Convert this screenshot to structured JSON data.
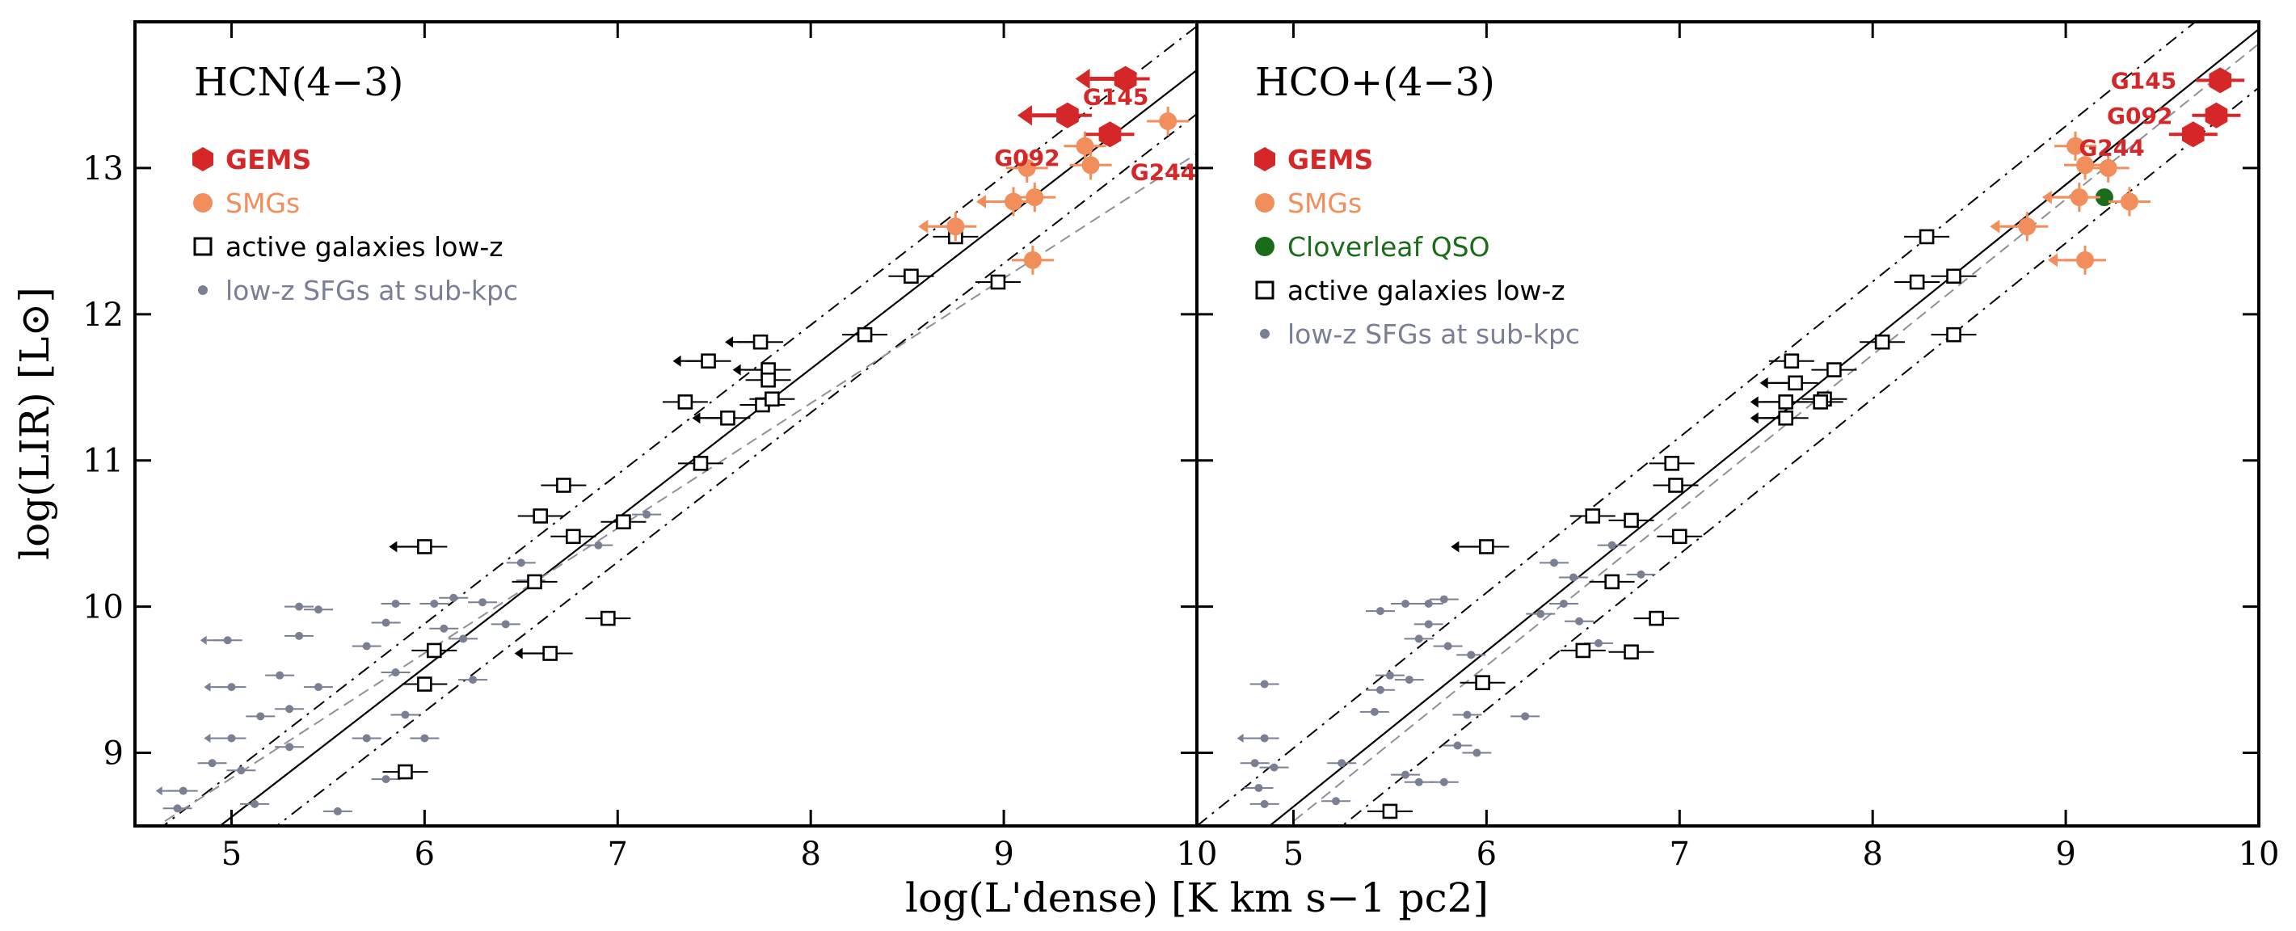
{
  "chart_data": {
    "type": "scatter",
    "xlabel": "log(L'dense) [K km s−1 pc2]",
    "ylabel": "log(LIR) [L⊙]",
    "xlim": [
      4.5,
      10.0
    ],
    "ylim": [
      8.5,
      14.0
    ],
    "xticks": [
      5,
      6,
      7,
      8,
      9,
      10
    ],
    "yticks": [
      9,
      10,
      11,
      12,
      13
    ],
    "colors": {
      "gems": "#d62728",
      "smgs": "#f28e5b",
      "cloverleaf": "#1a6b1a",
      "active": "#000000",
      "sfg": "#7a7f93",
      "trend": "#000000",
      "fit_hcn": "#8f8f9c"
    },
    "panels": [
      {
        "id": "hcn",
        "title": "HCN(4−3)",
        "legend": [
          {
            "key": "gems",
            "label": "GEMS"
          },
          {
            "key": "smgs",
            "label": "SMGs"
          },
          {
            "key": "active",
            "label": "active galaxies low-z"
          },
          {
            "key": "sfg",
            "label": "low-z SFGs at sub-kpc"
          }
        ],
        "gems": [
          {
            "name": "G145",
            "x": 9.63,
            "y": 13.61,
            "upper": true
          },
          {
            "name": "G092",
            "x": 9.33,
            "y": 13.36,
            "upper": true
          },
          {
            "name": "G244",
            "x": 9.55,
            "y": 13.23,
            "upper": false
          }
        ],
        "smgs": [
          {
            "x": 9.12,
            "y": 13.0,
            "upper": false
          },
          {
            "x": 9.16,
            "y": 12.8,
            "upper": false
          },
          {
            "x": 9.05,
            "y": 12.77,
            "upper": true
          },
          {
            "x": 8.75,
            "y": 12.6,
            "upper": true
          },
          {
            "x": 9.42,
            "y": 13.15,
            "upper": false
          },
          {
            "x": 9.45,
            "y": 13.02,
            "upper": false
          },
          {
            "x": 9.85,
            "y": 13.32,
            "upper": false
          },
          {
            "x": 9.15,
            "y": 12.37,
            "upper": false
          }
        ],
        "active": [
          {
            "x": 5.9,
            "y": 8.87
          },
          {
            "x": 6.0,
            "y": 9.47
          },
          {
            "x": 6.05,
            "y": 9.7
          },
          {
            "x": 6.65,
            "y": 9.68,
            "upper": true
          },
          {
            "x": 6.57,
            "y": 10.17
          },
          {
            "x": 6.6,
            "y": 10.62
          },
          {
            "x": 6.72,
            "y": 10.83
          },
          {
            "x": 6.77,
            "y": 10.48
          },
          {
            "x": 7.03,
            "y": 10.58
          },
          {
            "x": 6.0,
            "y": 10.41,
            "upper": true
          },
          {
            "x": 6.95,
            "y": 9.92
          },
          {
            "x": 7.43,
            "y": 10.98
          },
          {
            "x": 7.35,
            "y": 11.4
          },
          {
            "x": 7.47,
            "y": 11.68,
            "upper": true
          },
          {
            "x": 7.57,
            "y": 11.29,
            "upper": true
          },
          {
            "x": 7.75,
            "y": 11.38
          },
          {
            "x": 7.8,
            "y": 11.42
          },
          {
            "x": 7.78,
            "y": 11.62,
            "upper": true
          },
          {
            "x": 7.78,
            "y": 11.55
          },
          {
            "x": 7.74,
            "y": 11.81,
            "upper": true
          },
          {
            "x": 8.28,
            "y": 11.86
          },
          {
            "x": 8.52,
            "y": 12.26
          },
          {
            "x": 8.97,
            "y": 12.22
          },
          {
            "x": 8.75,
            "y": 12.53
          }
        ],
        "sfg": [
          {
            "x": 4.75,
            "y": 8.74,
            "upper": true
          },
          {
            "x": 4.72,
            "y": 8.62
          },
          {
            "x": 4.9,
            "y": 8.93
          },
          {
            "x": 5.05,
            "y": 8.88
          },
          {
            "x": 5.12,
            "y": 8.65
          },
          {
            "x": 5.0,
            "y": 9.1,
            "upper": true
          },
          {
            "x": 5.0,
            "y": 9.45,
            "upper": true
          },
          {
            "x": 5.15,
            "y": 9.25
          },
          {
            "x": 5.3,
            "y": 9.3
          },
          {
            "x": 4.98,
            "y": 9.77,
            "upper": true
          },
          {
            "x": 5.25,
            "y": 9.53
          },
          {
            "x": 5.35,
            "y": 9.8
          },
          {
            "x": 5.45,
            "y": 9.98
          },
          {
            "x": 5.35,
            "y": 10.0
          },
          {
            "x": 5.45,
            "y": 9.45
          },
          {
            "x": 5.55,
            "y": 8.6
          },
          {
            "x": 5.3,
            "y": 9.04
          },
          {
            "x": 5.7,
            "y": 9.73
          },
          {
            "x": 5.8,
            "y": 9.89
          },
          {
            "x": 5.85,
            "y": 10.02
          },
          {
            "x": 5.9,
            "y": 9.26
          },
          {
            "x": 5.85,
            "y": 9.55
          },
          {
            "x": 6.1,
            "y": 9.85
          },
          {
            "x": 6.15,
            "y": 10.06
          },
          {
            "x": 6.2,
            "y": 9.78
          },
          {
            "x": 6.25,
            "y": 9.5
          },
          {
            "x": 6.3,
            "y": 10.03
          },
          {
            "x": 6.05,
            "y": 10.02
          },
          {
            "x": 6.42,
            "y": 9.88
          },
          {
            "x": 6.5,
            "y": 10.3
          },
          {
            "x": 6.55,
            "y": 10.18
          },
          {
            "x": 6.9,
            "y": 10.42
          },
          {
            "x": 7.15,
            "y": 10.63
          },
          {
            "x": 5.8,
            "y": 8.82
          },
          {
            "x": 5.7,
            "y": 9.1
          },
          {
            "x": 6.0,
            "y": 9.1
          }
        ],
        "relations": [
          {
            "kind": "solid",
            "x": [
              4.5,
              10.0
            ],
            "y": [
              8.05,
              13.67
            ]
          },
          {
            "kind": "dashdot",
            "x": [
              4.5,
              10.0
            ],
            "y": [
              8.35,
              13.97
            ]
          },
          {
            "kind": "dashdot",
            "x": [
              4.5,
              10.0
            ],
            "y": [
              7.75,
              13.37
            ]
          },
          {
            "kind": "dashed",
            "x": [
              4.5,
              10.0
            ],
            "y": [
              8.4,
              13.1
            ]
          }
        ]
      },
      {
        "id": "hco",
        "title": "HCO+(4−3)",
        "legend": [
          {
            "key": "gems",
            "label": "GEMS"
          },
          {
            "key": "smgs",
            "label": "SMGs"
          },
          {
            "key": "cloverleaf",
            "label": "Cloverleaf QSO"
          },
          {
            "key": "active",
            "label": "active galaxies low-z"
          },
          {
            "key": "sfg",
            "label": "low-z SFGs at sub-kpc"
          }
        ],
        "gems": [
          {
            "name": "G145",
            "x": 9.8,
            "y": 13.6,
            "upper": false
          },
          {
            "name": "G092",
            "x": 9.78,
            "y": 13.36,
            "upper": false
          },
          {
            "name": "G244",
            "x": 9.66,
            "y": 13.23,
            "upper": false
          }
        ],
        "smgs": [
          {
            "x": 9.05,
            "y": 13.15,
            "upper": false
          },
          {
            "x": 9.1,
            "y": 13.02,
            "upper": false
          },
          {
            "x": 9.22,
            "y": 13.0,
            "upper": false
          },
          {
            "x": 9.07,
            "y": 12.8,
            "upper": true
          },
          {
            "x": 9.33,
            "y": 12.77,
            "upper": false
          },
          {
            "x": 8.8,
            "y": 12.6,
            "upper": true
          },
          {
            "x": 9.1,
            "y": 12.37,
            "upper": true
          }
        ],
        "cloverleaf": [
          {
            "x": 9.2,
            "y": 12.8
          }
        ],
        "active": [
          {
            "x": 5.5,
            "y": 8.6
          },
          {
            "x": 5.98,
            "y": 9.48
          },
          {
            "x": 6.5,
            "y": 9.7
          },
          {
            "x": 6.75,
            "y": 9.69
          },
          {
            "x": 6.88,
            "y": 9.92
          },
          {
            "x": 6.65,
            "y": 10.17
          },
          {
            "x": 6.55,
            "y": 10.62
          },
          {
            "x": 6.75,
            "y": 10.59
          },
          {
            "x": 6.98,
            "y": 10.83
          },
          {
            "x": 6.96,
            "y": 10.98
          },
          {
            "x": 7.0,
            "y": 10.48
          },
          {
            "x": 6.0,
            "y": 10.41,
            "upper": true
          },
          {
            "x": 7.55,
            "y": 11.29,
            "upper": true
          },
          {
            "x": 7.55,
            "y": 11.4,
            "upper": true
          },
          {
            "x": 7.6,
            "y": 11.53,
            "upper": true
          },
          {
            "x": 7.58,
            "y": 11.68
          },
          {
            "x": 7.75,
            "y": 11.42
          },
          {
            "x": 7.73,
            "y": 11.4
          },
          {
            "x": 7.8,
            "y": 11.62
          },
          {
            "x": 8.05,
            "y": 11.81
          },
          {
            "x": 8.42,
            "y": 11.86
          },
          {
            "x": 8.23,
            "y": 12.22
          },
          {
            "x": 8.42,
            "y": 12.26
          },
          {
            "x": 8.28,
            "y": 12.53
          }
        ],
        "sfg": [
          {
            "x": 4.85,
            "y": 9.1,
            "upper": true
          },
          {
            "x": 4.8,
            "y": 8.93
          },
          {
            "x": 4.9,
            "y": 8.9
          },
          {
            "x": 4.82,
            "y": 8.76
          },
          {
            "x": 4.85,
            "y": 8.65
          },
          {
            "x": 4.85,
            "y": 9.47
          },
          {
            "x": 5.25,
            "y": 8.93
          },
          {
            "x": 5.22,
            "y": 8.67
          },
          {
            "x": 5.42,
            "y": 9.28
          },
          {
            "x": 5.45,
            "y": 9.43
          },
          {
            "x": 5.5,
            "y": 9.53
          },
          {
            "x": 5.6,
            "y": 9.5
          },
          {
            "x": 5.45,
            "y": 9.97
          },
          {
            "x": 5.58,
            "y": 10.02
          },
          {
            "x": 5.65,
            "y": 9.78
          },
          {
            "x": 5.7,
            "y": 10.02
          },
          {
            "x": 5.78,
            "y": 10.05
          },
          {
            "x": 5.7,
            "y": 9.88
          },
          {
            "x": 5.8,
            "y": 9.73
          },
          {
            "x": 5.92,
            "y": 9.67
          },
          {
            "x": 5.9,
            "y": 9.26
          },
          {
            "x": 5.85,
            "y": 9.05
          },
          {
            "x": 5.95,
            "y": 9.0
          },
          {
            "x": 5.78,
            "y": 8.8
          },
          {
            "x": 6.2,
            "y": 9.25
          },
          {
            "x": 6.28,
            "y": 9.95
          },
          {
            "x": 6.35,
            "y": 10.3
          },
          {
            "x": 6.4,
            "y": 10.02
          },
          {
            "x": 6.45,
            "y": 10.2
          },
          {
            "x": 6.48,
            "y": 9.9
          },
          {
            "x": 6.65,
            "y": 10.42
          },
          {
            "x": 6.58,
            "y": 9.75
          },
          {
            "x": 6.8,
            "y": 10.22
          },
          {
            "x": 5.65,
            "y": 8.8
          },
          {
            "x": 5.58,
            "y": 8.85
          }
        ],
        "relations": [
          {
            "kind": "solid",
            "x": [
              4.5,
              10.0
            ],
            "y": [
              8.1,
              13.95
            ]
          },
          {
            "kind": "dashdot",
            "x": [
              4.5,
              10.0
            ],
            "y": [
              8.5,
              14.35
            ]
          },
          {
            "kind": "dashdot",
            "x": [
              4.5,
              10.0
            ],
            "y": [
              7.7,
              13.55
            ]
          },
          {
            "kind": "dashed",
            "x": [
              4.5,
              10.0
            ],
            "y": [
              8.0,
              13.85
            ]
          }
        ]
      }
    ]
  }
}
